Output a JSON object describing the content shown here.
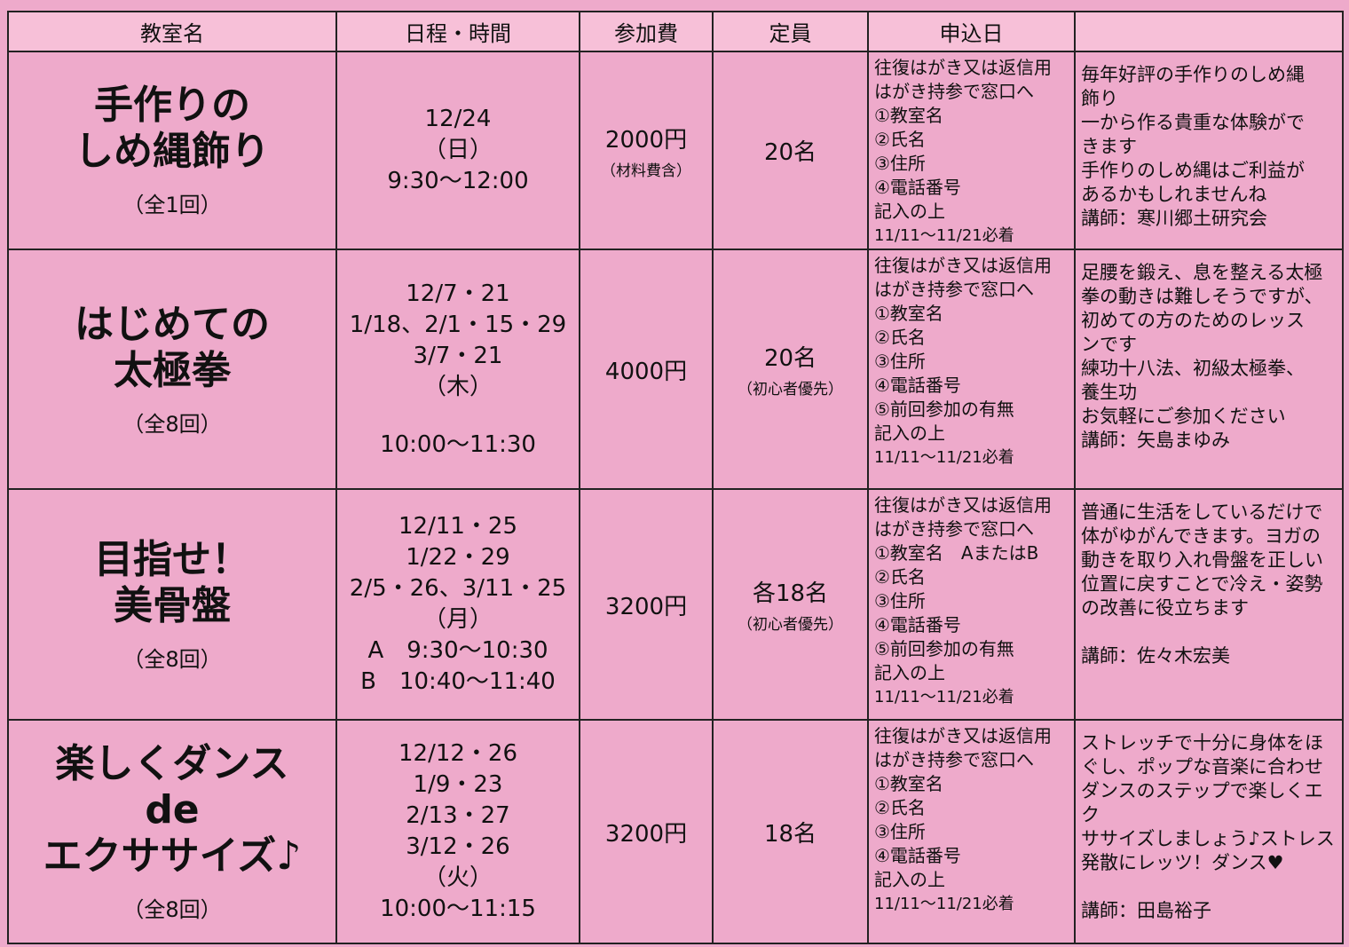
{
  "header": [
    "教室名",
    "日程・時間",
    "参加費",
    "定員",
    "申込日"
  ],
  "rows": [
    {
      "title": [
        "手作りの",
        "しめ縄飾り"
      ],
      "count": "（全1回）",
      "schedule": [
        "12/24",
        "（日）",
        "9:30～12:00"
      ],
      "fee": "2000円",
      "fee_note": "（材料費含）",
      "capacity": "20名",
      "application": [
        "往復はがき又は返信用",
        "はがき持参で窓口へ",
        "①教室名",
        "②氏名",
        "③住所",
        "④電話番号",
        "記入の上",
        "11/11～11/21必着"
      ],
      "description": [
        "毎年好評の手作りのしめ縄",
        "飾り",
        "一から作る貴重な体験がで",
        "きます",
        "手作りのしめ縄はご利益が",
        "あるかもしれませんね"
      ],
      "lecturer": "講師：寒川郷土研究会"
    },
    {
      "title": [
        "はじめての",
        "太極拳"
      ],
      "count": "（全8回）",
      "schedule": [
        "12/7・21",
        "1/18、2/1・15・29",
        "3/7・21",
        "（木）"
      ],
      "time": "10:00～11:30",
      "fee": "4000円",
      "capacity": "20名",
      "capacity_note": "（初心者優先）",
      "application": [
        "往復はがき又は返信用",
        "はがき持参で窓口へ",
        "①教室名",
        "②氏名",
        "③住所",
        "④電話番号",
        "⑤前回参加の有無",
        "記入の上",
        "11/11～11/21必着"
      ],
      "description": [
        "足腰を鍛え、息を整える太極",
        "拳の動きは難しそうですが、",
        "初めての方のためのレッス",
        "ンです",
        "練功十八法、初級太極拳、",
        "養生功",
        "お気軽にご参加ください"
      ],
      "lecturer": "講師：矢島まゆみ"
    },
    {
      "title": [
        "目指せ！",
        "美骨盤"
      ],
      "count": "（全8回）",
      "schedule": [
        "12/11・25",
        "1/22・29",
        "2/5・26、3/11・25",
        "（月）",
        "A　9:30～10:30",
        "B　10:40～11:40"
      ],
      "fee": "3200円",
      "capacity": "各18名",
      "capacity_note": "（初心者優先）",
      "application": [
        "往復はがき又は返信用",
        "はがき持参で窓口へ",
        "①教室名　AまたはB",
        "②氏名",
        "③住所",
        "④電話番号",
        "⑤前回参加の有無",
        "記入の上",
        "11/11～11/21必着"
      ],
      "description": [
        "普通に生活をしているだけで",
        "体がゆがんできます。ヨガの",
        "動きを取り入れ骨盤を正しい",
        "位置に戻すことで冷え・姿勢",
        "の改善に役立ちます"
      ],
      "lecturer": "講師：佐々木宏美"
    },
    {
      "title": [
        "楽しくダンス",
        "de",
        "エクササイズ♪"
      ],
      "count": "（全8回）",
      "schedule": [
        "12/12・26",
        "1/9・23",
        "2/13・27",
        "3/12・26",
        "（火）",
        "10:00～11:15"
      ],
      "fee": "3200円",
      "capacity": "18名",
      "application": [
        "往復はがき又は返信用",
        "はがき持参で窓口へ",
        "①教室名",
        "②氏名",
        "③住所",
        "④電話番号",
        "記入の上",
        "11/11～11/21必着"
      ],
      "description": [
        "ストレッチで十分に身体をほ",
        "ぐし、ポップな音楽に合わせ",
        "ダンスのステップで楽しくエク",
        "ササイズしましょう♪ストレス",
        "発散にレッツ！ダンス♥"
      ],
      "lecturer": "講師：田島裕子"
    }
  ]
}
